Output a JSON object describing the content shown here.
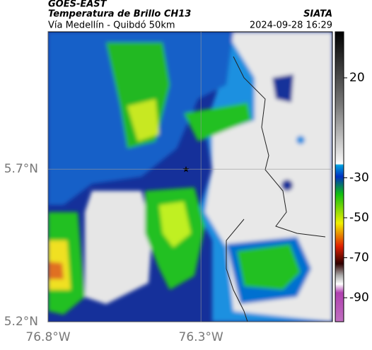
{
  "header": {
    "source": "GOES-EAST",
    "title": "Temperatura de Brillo CH13",
    "org": "SIATA",
    "route": "Vía Medellín - Quibdó 50km",
    "timestamp": "2024-09-28 16:29"
  },
  "map": {
    "xlim": [
      -76.8,
      -75.87
    ],
    "ylim": [
      5.2,
      6.15
    ],
    "xticks": [
      {
        "value": -76.8,
        "label": "76.8°W"
      },
      {
        "value": -76.3,
        "label": "76.3°W"
      }
    ],
    "yticks": [
      {
        "value": 5.2,
        "label": "5.2°N"
      },
      {
        "value": 5.7,
        "label": "5.7°N"
      }
    ]
  },
  "colorbar": {
    "lim": [
      -102,
      43
    ],
    "ticks": [
      20,
      -30,
      -50,
      -70,
      -90
    ]
  }
}
